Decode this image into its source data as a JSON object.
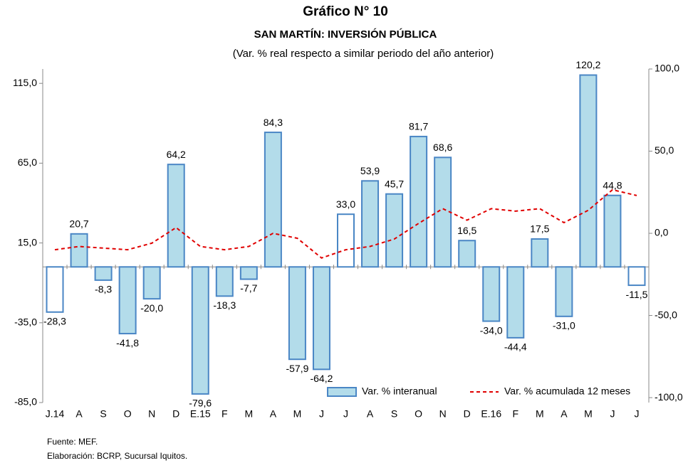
{
  "chart_data": {
    "type": "bar_line",
    "title": "Gráfico N° 10",
    "subtitle": "SAN MARTÍN: INVERSIÓN PÚBLICA",
    "note": "(Var. % real respecto a similar periodo del año anterior)",
    "categories": [
      "J.14",
      "A",
      "S",
      "O",
      "N",
      "D",
      "E.15",
      "F",
      "M",
      "A",
      "M",
      "J",
      "J",
      "A",
      "S",
      "O",
      "N",
      "D",
      "E.16",
      "F",
      "M",
      "A",
      "M",
      "J",
      "J"
    ],
    "series": [
      {
        "name": "Var. % interanual",
        "type": "bar",
        "color": "#b3dcea",
        "edge_color": "#4a86c5",
        "colors": [
          "#ffffff",
          "#b3dcea",
          "#b3dcea",
          "#b3dcea",
          "#b3dcea",
          "#b3dcea",
          "#b3dcea",
          "#b3dcea",
          "#b3dcea",
          "#b3dcea",
          "#b3dcea",
          "#b3dcea",
          "#ffffff",
          "#b3dcea",
          "#b3dcea",
          "#b3dcea",
          "#b3dcea",
          "#b3dcea",
          "#b3dcea",
          "#b3dcea",
          "#b3dcea",
          "#b3dcea",
          "#b3dcea",
          "#b3dcea",
          "#ffffff"
        ],
        "values": [
          -28.3,
          20.7,
          -8.3,
          -41.8,
          -20.0,
          64.2,
          -79.6,
          -18.3,
          -7.7,
          84.3,
          -57.9,
          -64.2,
          33.0,
          53.9,
          45.7,
          81.7,
          68.6,
          16.5,
          -34.0,
          -44.4,
          17.5,
          -31.0,
          120.2,
          44.8,
          -11.5
        ],
        "value_labels": [
          "-28,3",
          "20,7",
          "-8,3",
          "-41,8",
          "-20,0",
          "64,2",
          "-79,6",
          "-18,3",
          "-7,7",
          "84,3",
          "-57,9",
          "-64,2",
          "33,0",
          "53,9",
          "45,7",
          "81,7",
          "68,6",
          "16,5",
          "-34,0",
          "-44,4",
          "17,5",
          "-31,0",
          "120,2",
          "44,8",
          "-11,5"
        ]
      },
      {
        "name": "Var. % acumulada 12 meses",
        "type": "line",
        "axis": "y2",
        "color": "#e00000",
        "dashed": true,
        "values": [
          -10,
          -8,
          -9,
          -10,
          -6,
          3.5,
          -8,
          -10,
          -8,
          0,
          -3,
          -15,
          -10,
          -8,
          -3.5,
          6,
          15,
          8,
          15,
          13.5,
          15,
          6.5,
          14,
          26.5,
          23
        ]
      }
    ],
    "ylim": [
      -85,
      124
    ],
    "yticks": [
      {
        "value": -85,
        "label": "-85,0"
      },
      {
        "value": -35,
        "label": "-35,0"
      },
      {
        "value": 15,
        "label": "15,0"
      },
      {
        "value": 65,
        "label": "65,0"
      },
      {
        "value": 115,
        "label": "115,0"
      }
    ],
    "y2lim": [
      -103,
      100
    ],
    "y2ticks": [
      {
        "value": -100,
        "label": "-100,0"
      },
      {
        "value": -50,
        "label": "-50,0"
      },
      {
        "value": 0,
        "label": "0,0"
      },
      {
        "value": 50,
        "label": "50,0"
      },
      {
        "value": 100,
        "label": "100,0"
      }
    ],
    "legend": "lower right",
    "footnotes": [
      "Fuente: MEF.",
      "Elaboración: BCRP, Sucursal Iquitos."
    ]
  }
}
